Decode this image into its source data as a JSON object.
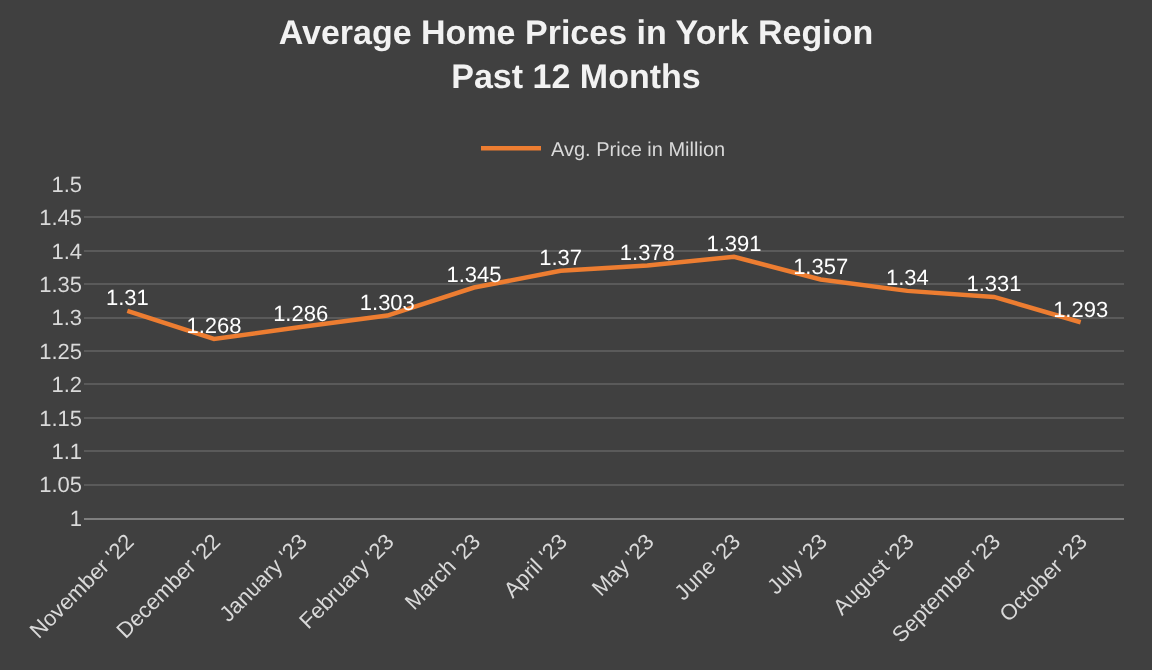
{
  "chart_data": {
    "type": "line",
    "title": "Average Home Prices in York Region\nPast 12 Months",
    "categories": [
      "November '22",
      "December '22",
      "January '23",
      "February '23",
      "March '23",
      "April '23",
      "May '23",
      "June '23",
      "July '23",
      "August '23",
      "September '23",
      "October '23"
    ],
    "series": [
      {
        "name": "Avg. Price in Million",
        "color": "#ed7d31",
        "values": [
          1.31,
          1.268,
          1.286,
          1.303,
          1.345,
          1.37,
          1.378,
          1.391,
          1.357,
          1.34,
          1.331,
          1.293
        ]
      }
    ],
    "ylim": [
      1,
      1.5
    ],
    "yticks": [
      1,
      1.05,
      1.1,
      1.15,
      1.2,
      1.25,
      1.3,
      1.35,
      1.4,
      1.45,
      1.5
    ],
    "grid": "y",
    "legend": "top",
    "data_labels": true,
    "marker": "none",
    "line_style": "solid"
  }
}
